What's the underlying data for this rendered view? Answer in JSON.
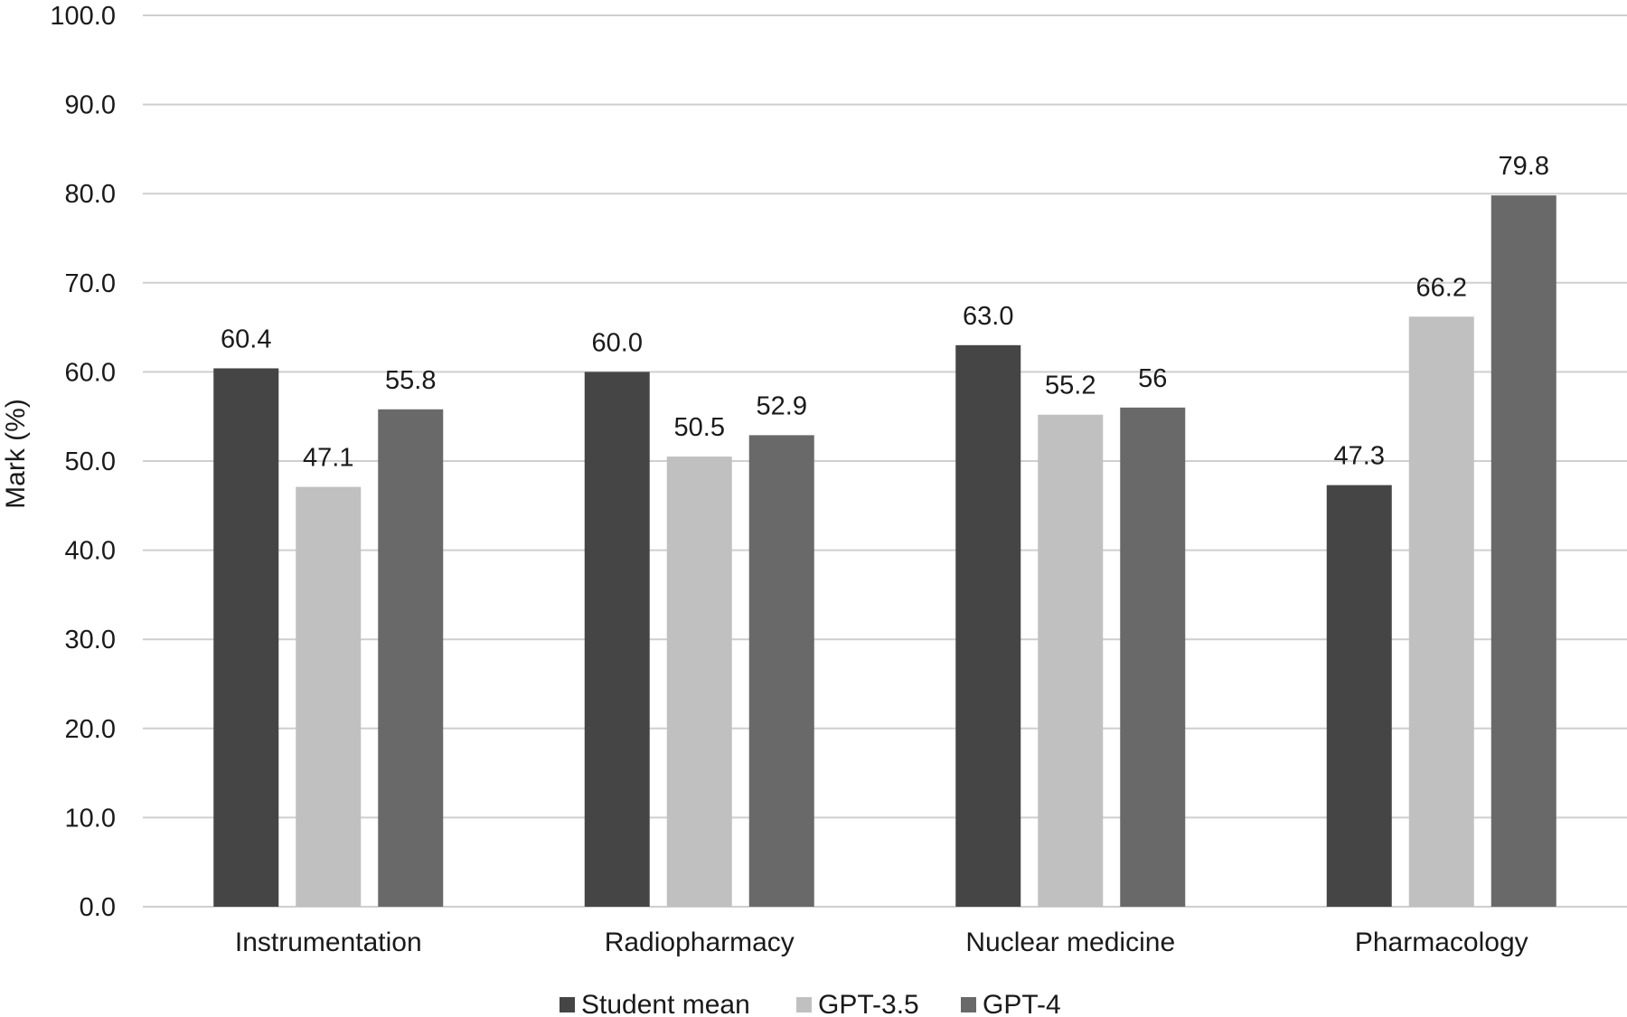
{
  "chart_data": {
    "type": "bar",
    "title": "",
    "xlabel": "",
    "ylabel": "Mark (%)",
    "ylim": [
      0,
      100
    ],
    "yticks": [
      "0.0",
      "10.0",
      "20.0",
      "30.0",
      "40.0",
      "50.0",
      "60.0",
      "70.0",
      "80.0",
      "90.0",
      "100.0"
    ],
    "grid": true,
    "legend_position": "bottom",
    "categories": [
      "Instrumentation",
      "Radiopharmacy",
      "Nuclear medicine",
      "Pharmacology"
    ],
    "series": [
      {
        "name": "Student mean",
        "color": "#454545",
        "values": [
          60.4,
          60.0,
          63.0,
          47.3
        ],
        "labels": [
          "60.4",
          "60.0",
          "63.0",
          "47.3"
        ]
      },
      {
        "name": "GPT-3.5",
        "color": "#c0c0c0",
        "values": [
          47.1,
          50.5,
          55.2,
          66.2
        ],
        "labels": [
          "47.1",
          "50.5",
          "55.2",
          "66.2"
        ]
      },
      {
        "name": "GPT-4",
        "color": "#696969",
        "values": [
          55.8,
          52.9,
          56,
          79.8
        ],
        "labels": [
          "55.8",
          "52.9",
          "56",
          "79.8"
        ]
      }
    ]
  }
}
